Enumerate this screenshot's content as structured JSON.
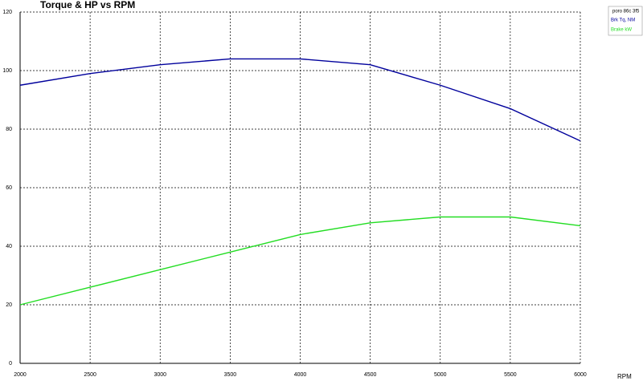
{
  "chart_data": {
    "type": "line",
    "title": "Torque & HP vs RPM",
    "xlabel": "RPM",
    "legend_title": "poro 86c 3f5",
    "x": [
      2000,
      2500,
      3000,
      3500,
      4000,
      4500,
      5000,
      5500,
      6000
    ],
    "series": [
      {
        "name": "Brk Tq, NM",
        "color": "#00009c",
        "values": [
          95,
          99,
          102,
          104,
          104,
          102,
          95,
          87,
          76
        ]
      },
      {
        "name": "Brake kW",
        "color": "#22dd22",
        "values": [
          20,
          26,
          32,
          38,
          44,
          48,
          50,
          50,
          47
        ]
      }
    ],
    "xlim": [
      2000,
      6000
    ],
    "xticks": [
      2000,
      2500,
      3000,
      3500,
      4000,
      4500,
      5000,
      5500,
      6000
    ],
    "ylim": [
      0,
      120
    ],
    "yticks": [
      0,
      20,
      40,
      60,
      80,
      100,
      120
    ],
    "grid": true
  }
}
